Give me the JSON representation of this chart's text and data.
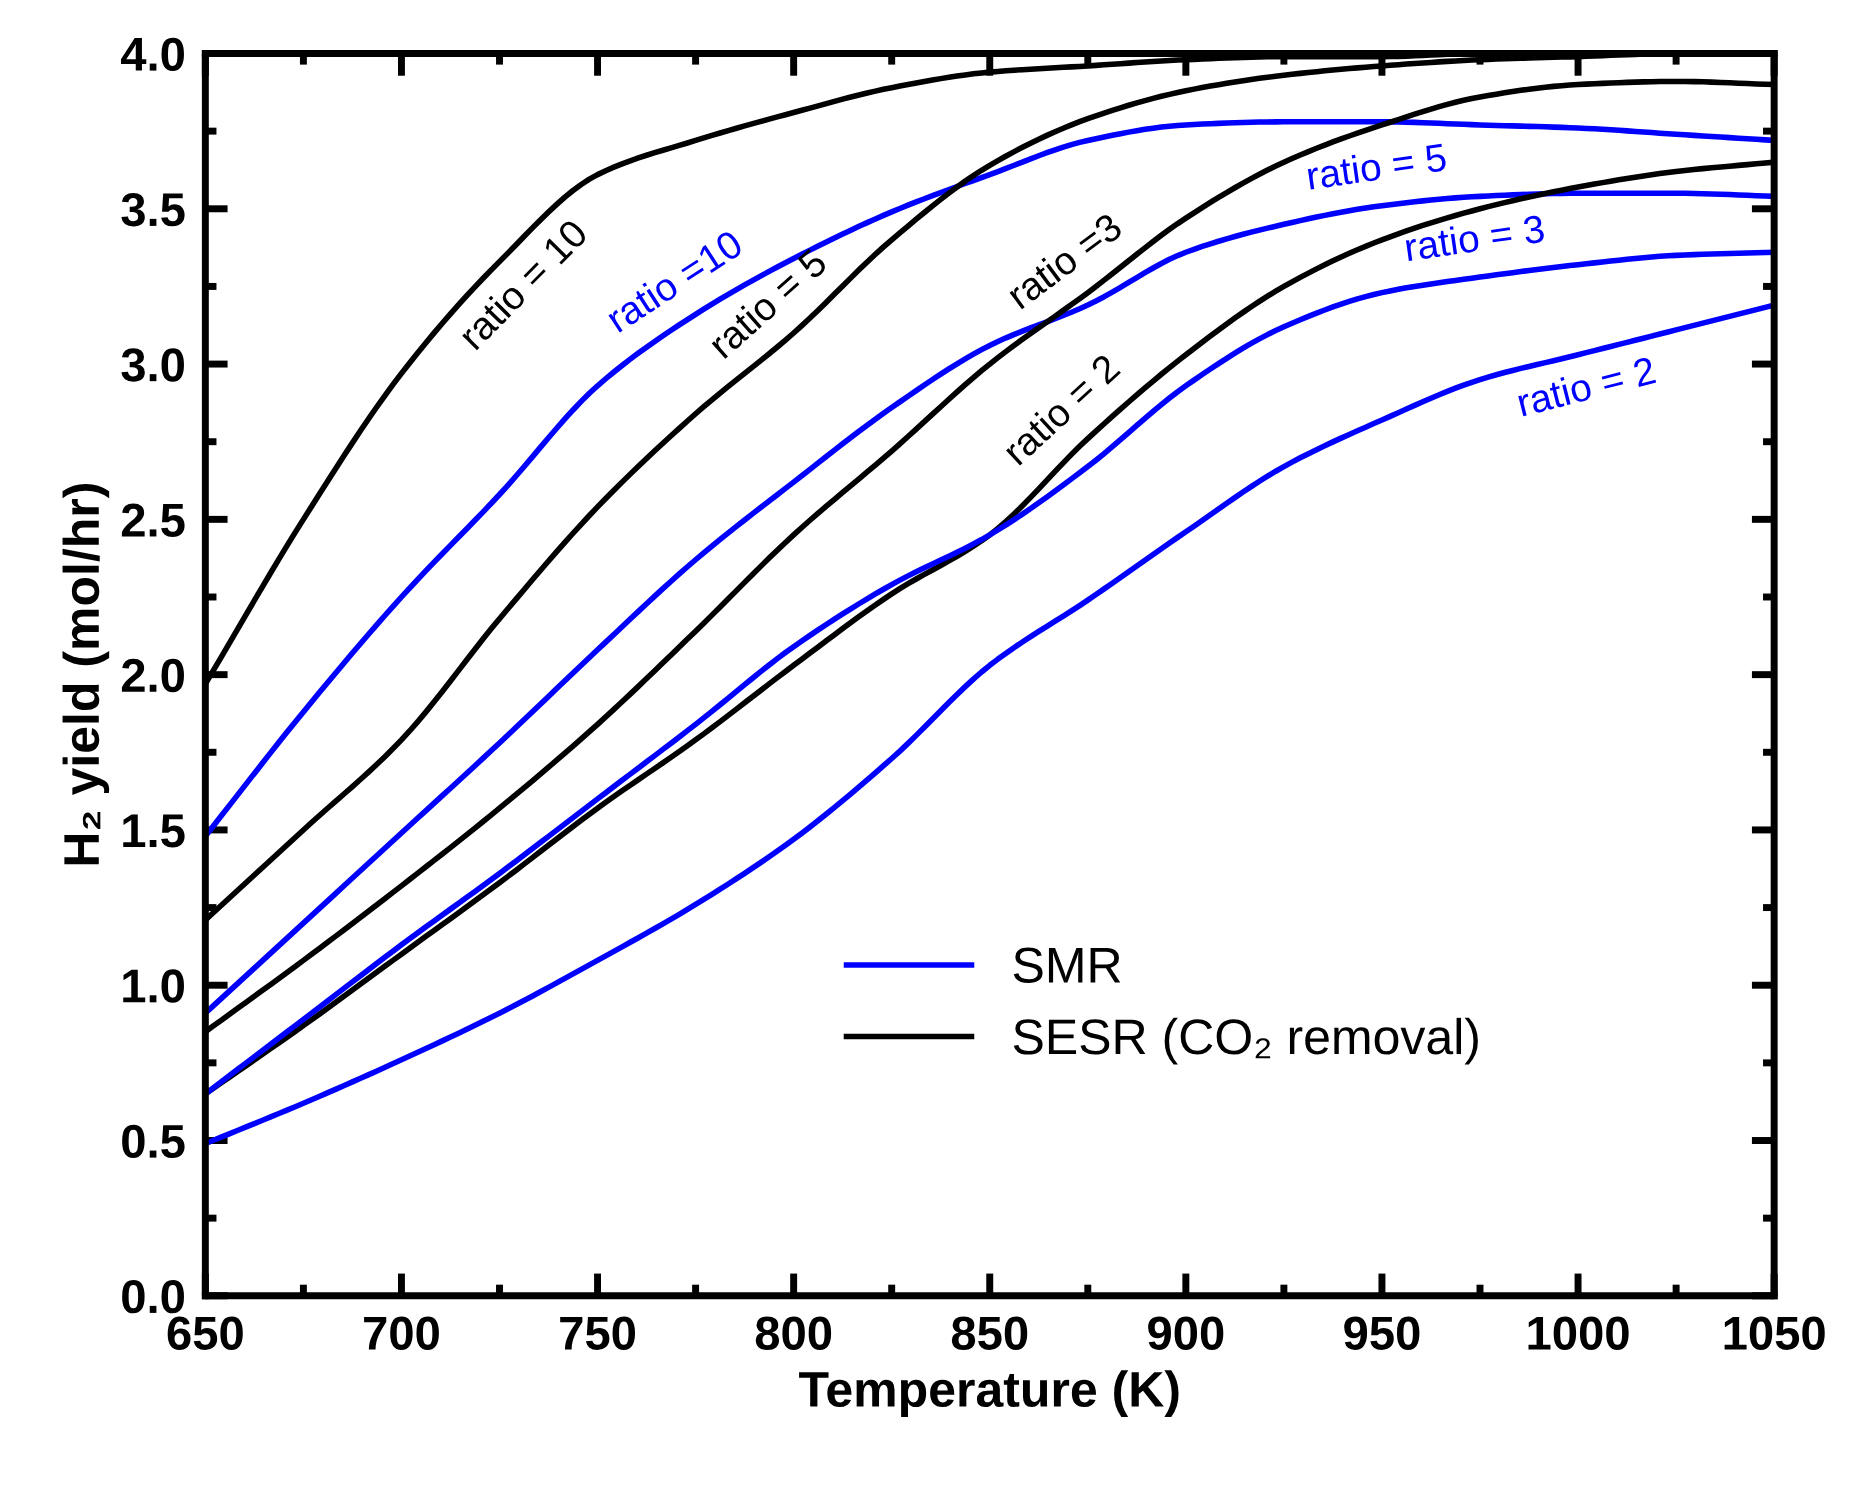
{
  "chart_data": {
    "type": "line",
    "xlabel": "Temperature (K)",
    "ylabel": "H₂ yield (mol/hr)",
    "x": [
      650,
      675,
      700,
      725,
      750,
      775,
      800,
      825,
      850,
      875,
      900,
      925,
      950,
      975,
      1000,
      1025,
      1050
    ],
    "xlim": [
      650,
      1050
    ],
    "xticks": [
      650,
      700,
      750,
      800,
      850,
      900,
      950,
      1000,
      1050
    ],
    "ylim": [
      0,
      4
    ],
    "yticks": [
      {
        "value": 0,
        "label": "0.0"
      },
      {
        "value": 0.5,
        "label": "0.5"
      },
      {
        "value": 1,
        "label": "1.0"
      },
      {
        "value": 1.5,
        "label": "1.5"
      },
      {
        "value": 2,
        "label": "2.0"
      },
      {
        "value": 2.5,
        "label": "2.5"
      },
      {
        "value": 3,
        "label": "3.0"
      },
      {
        "value": 3.5,
        "label": "3.5"
      },
      {
        "value": 4,
        "label": "4.0"
      }
    ],
    "grid": false,
    "legend": "bottom right",
    "marker": "none",
    "line_style": "solid",
    "series": [
      {
        "name": "SMR",
        "color": "#0000ff",
        "values": [
          1.48,
          1.88,
          2.25,
          2.58,
          2.93,
          3.16,
          3.34,
          3.49,
          3.61,
          3.72,
          3.77,
          3.78,
          3.78,
          3.77,
          3.76,
          3.74,
          3.72
        ]
      },
      {
        "name": "SESR (CO₂ removal)",
        "color": "#000000",
        "values": [
          1.97,
          2.5,
          2.97,
          3.33,
          3.61,
          3.72,
          3.81,
          3.89,
          3.94,
          3.96,
          3.98,
          3.99,
          3.99,
          4.0,
          4.0,
          4.0,
          4.0
        ]
      },
      {
        "color": "#000000",
        "values": [
          1.21,
          1.5,
          1.79,
          2.18,
          2.54,
          2.84,
          3.1,
          3.4,
          3.64,
          3.79,
          3.88,
          3.93,
          3.96,
          3.98,
          3.99,
          4.0,
          4.0
        ]
      },
      {
        "color": "#0000ff",
        "values": [
          0.91,
          1.2,
          1.49,
          1.78,
          2.08,
          2.37,
          2.62,
          2.86,
          3.06,
          3.19,
          3.36,
          3.45,
          3.51,
          3.54,
          3.55,
          3.55,
          3.54
        ]
      },
      {
        "color": "#000000",
        "values": [
          0.85,
          1.08,
          1.32,
          1.57,
          1.84,
          2.14,
          2.45,
          2.72,
          3.0,
          3.23,
          3.47,
          3.65,
          3.77,
          3.86,
          3.9,
          3.91,
          3.9
        ]
      },
      {
        "color": "#000000",
        "values": [
          0.65,
          0.87,
          1.1,
          1.33,
          1.57,
          1.79,
          2.03,
          2.26,
          2.45,
          2.76,
          3.03,
          3.25,
          3.4,
          3.5,
          3.57,
          3.62,
          3.65
        ]
      },
      {
        "color": "#0000ff",
        "values": [
          0.65,
          0.89,
          1.13,
          1.36,
          1.6,
          1.84,
          2.09,
          2.29,
          2.45,
          2.67,
          2.93,
          3.12,
          3.23,
          3.28,
          3.32,
          3.35,
          3.36
        ]
      },
      {
        "color": "#0000ff",
        "values": [
          0.49,
          0.62,
          0.76,
          0.91,
          1.08,
          1.26,
          1.47,
          1.73,
          2.03,
          2.24,
          2.46,
          2.67,
          2.82,
          2.95,
          3.03,
          3.11,
          3.19
        ]
      }
    ],
    "annotations": [
      {
        "text": "ratio = 10",
        "x": 725,
        "y": 3.33
      },
      {
        "text": "ratio =10",
        "x": 775,
        "y": 3.16
      },
      {
        "text": "ratio = 5",
        "x": 800,
        "y": 3.1
      },
      {
        "text": "ratio =3",
        "x": 875,
        "y": 3.23
      },
      {
        "text": "ratio = 2",
        "x": 875,
        "y": 2.76
      },
      {
        "text": "ratio = 5",
        "x": 950,
        "y": 3.51
      },
      {
        "text": "ratio = 3",
        "x": 975,
        "y": 3.28
      },
      {
        "text": "ratio = 2",
        "x": 1000,
        "y": 3.03
      }
    ]
  }
}
